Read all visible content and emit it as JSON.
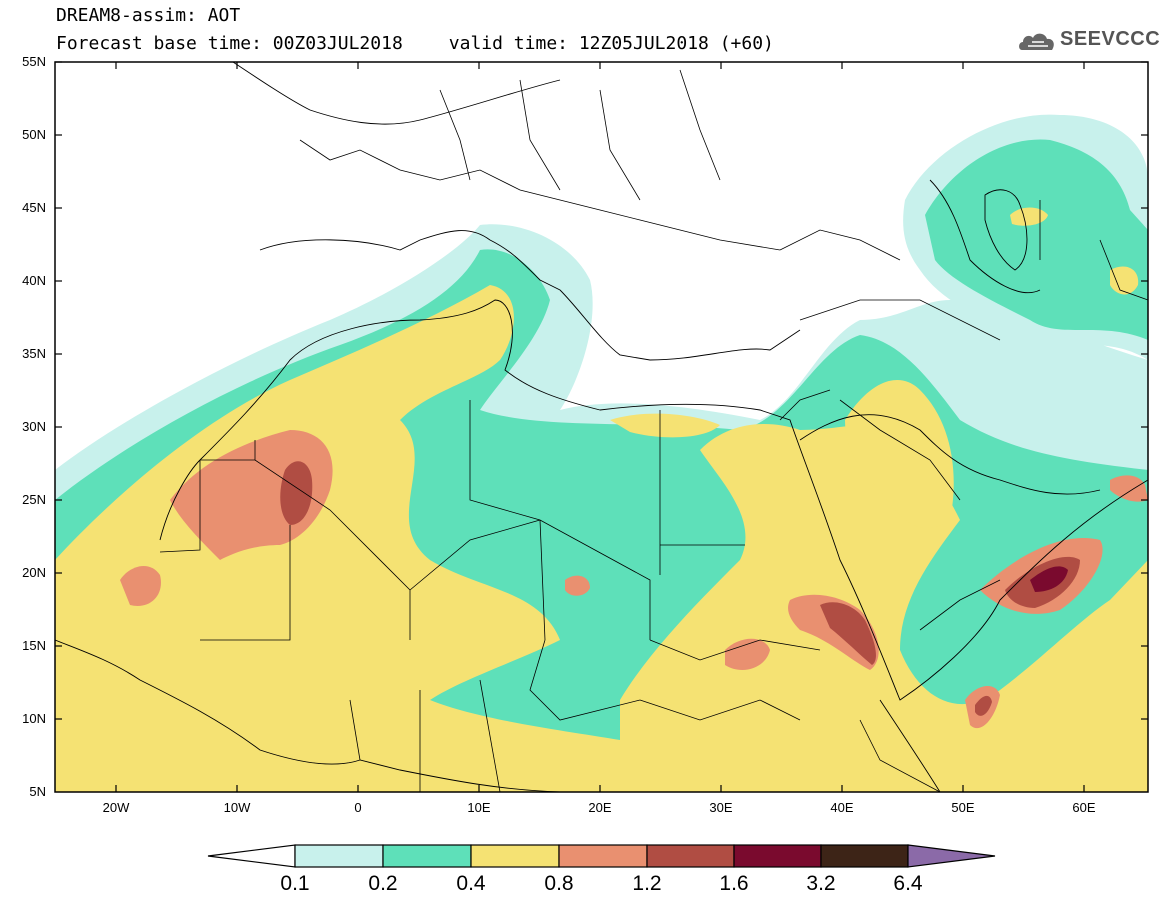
{
  "header": {
    "title_line1": "DREAM8-assim: AOT",
    "forecast_base": "Forecast base time: 00Z03JUL2018",
    "valid_time": "valid time: 12Z05JUL2018 (+60)"
  },
  "logo": {
    "text": "SEEVCCC",
    "icon": "cloud-icon"
  },
  "axes": {
    "y_ticks": [
      "55N",
      "50N",
      "45N",
      "40N",
      "35N",
      "30N",
      "25N",
      "20N",
      "15N",
      "10N",
      "5N"
    ],
    "x_ticks": [
      "20W",
      "10W",
      "0",
      "10E",
      "20E",
      "30E",
      "40E",
      "50E",
      "60E"
    ],
    "lon_range": [
      -25,
      65
    ],
    "lat_range": [
      5,
      55
    ]
  },
  "colorbar": {
    "labels": [
      "0.1",
      "0.2",
      "0.4",
      "0.8",
      "1.2",
      "1.6",
      "3.2",
      "6.4"
    ],
    "colors": [
      "#c8f1ec",
      "#5ee0b9",
      "#f5e273",
      "#e99070",
      "#b04d43",
      "#7a0a2e",
      "#3d2417",
      "#8b6aa8"
    ]
  },
  "colors": {
    "ocean": "#ffffff",
    "border": "#000000"
  }
}
